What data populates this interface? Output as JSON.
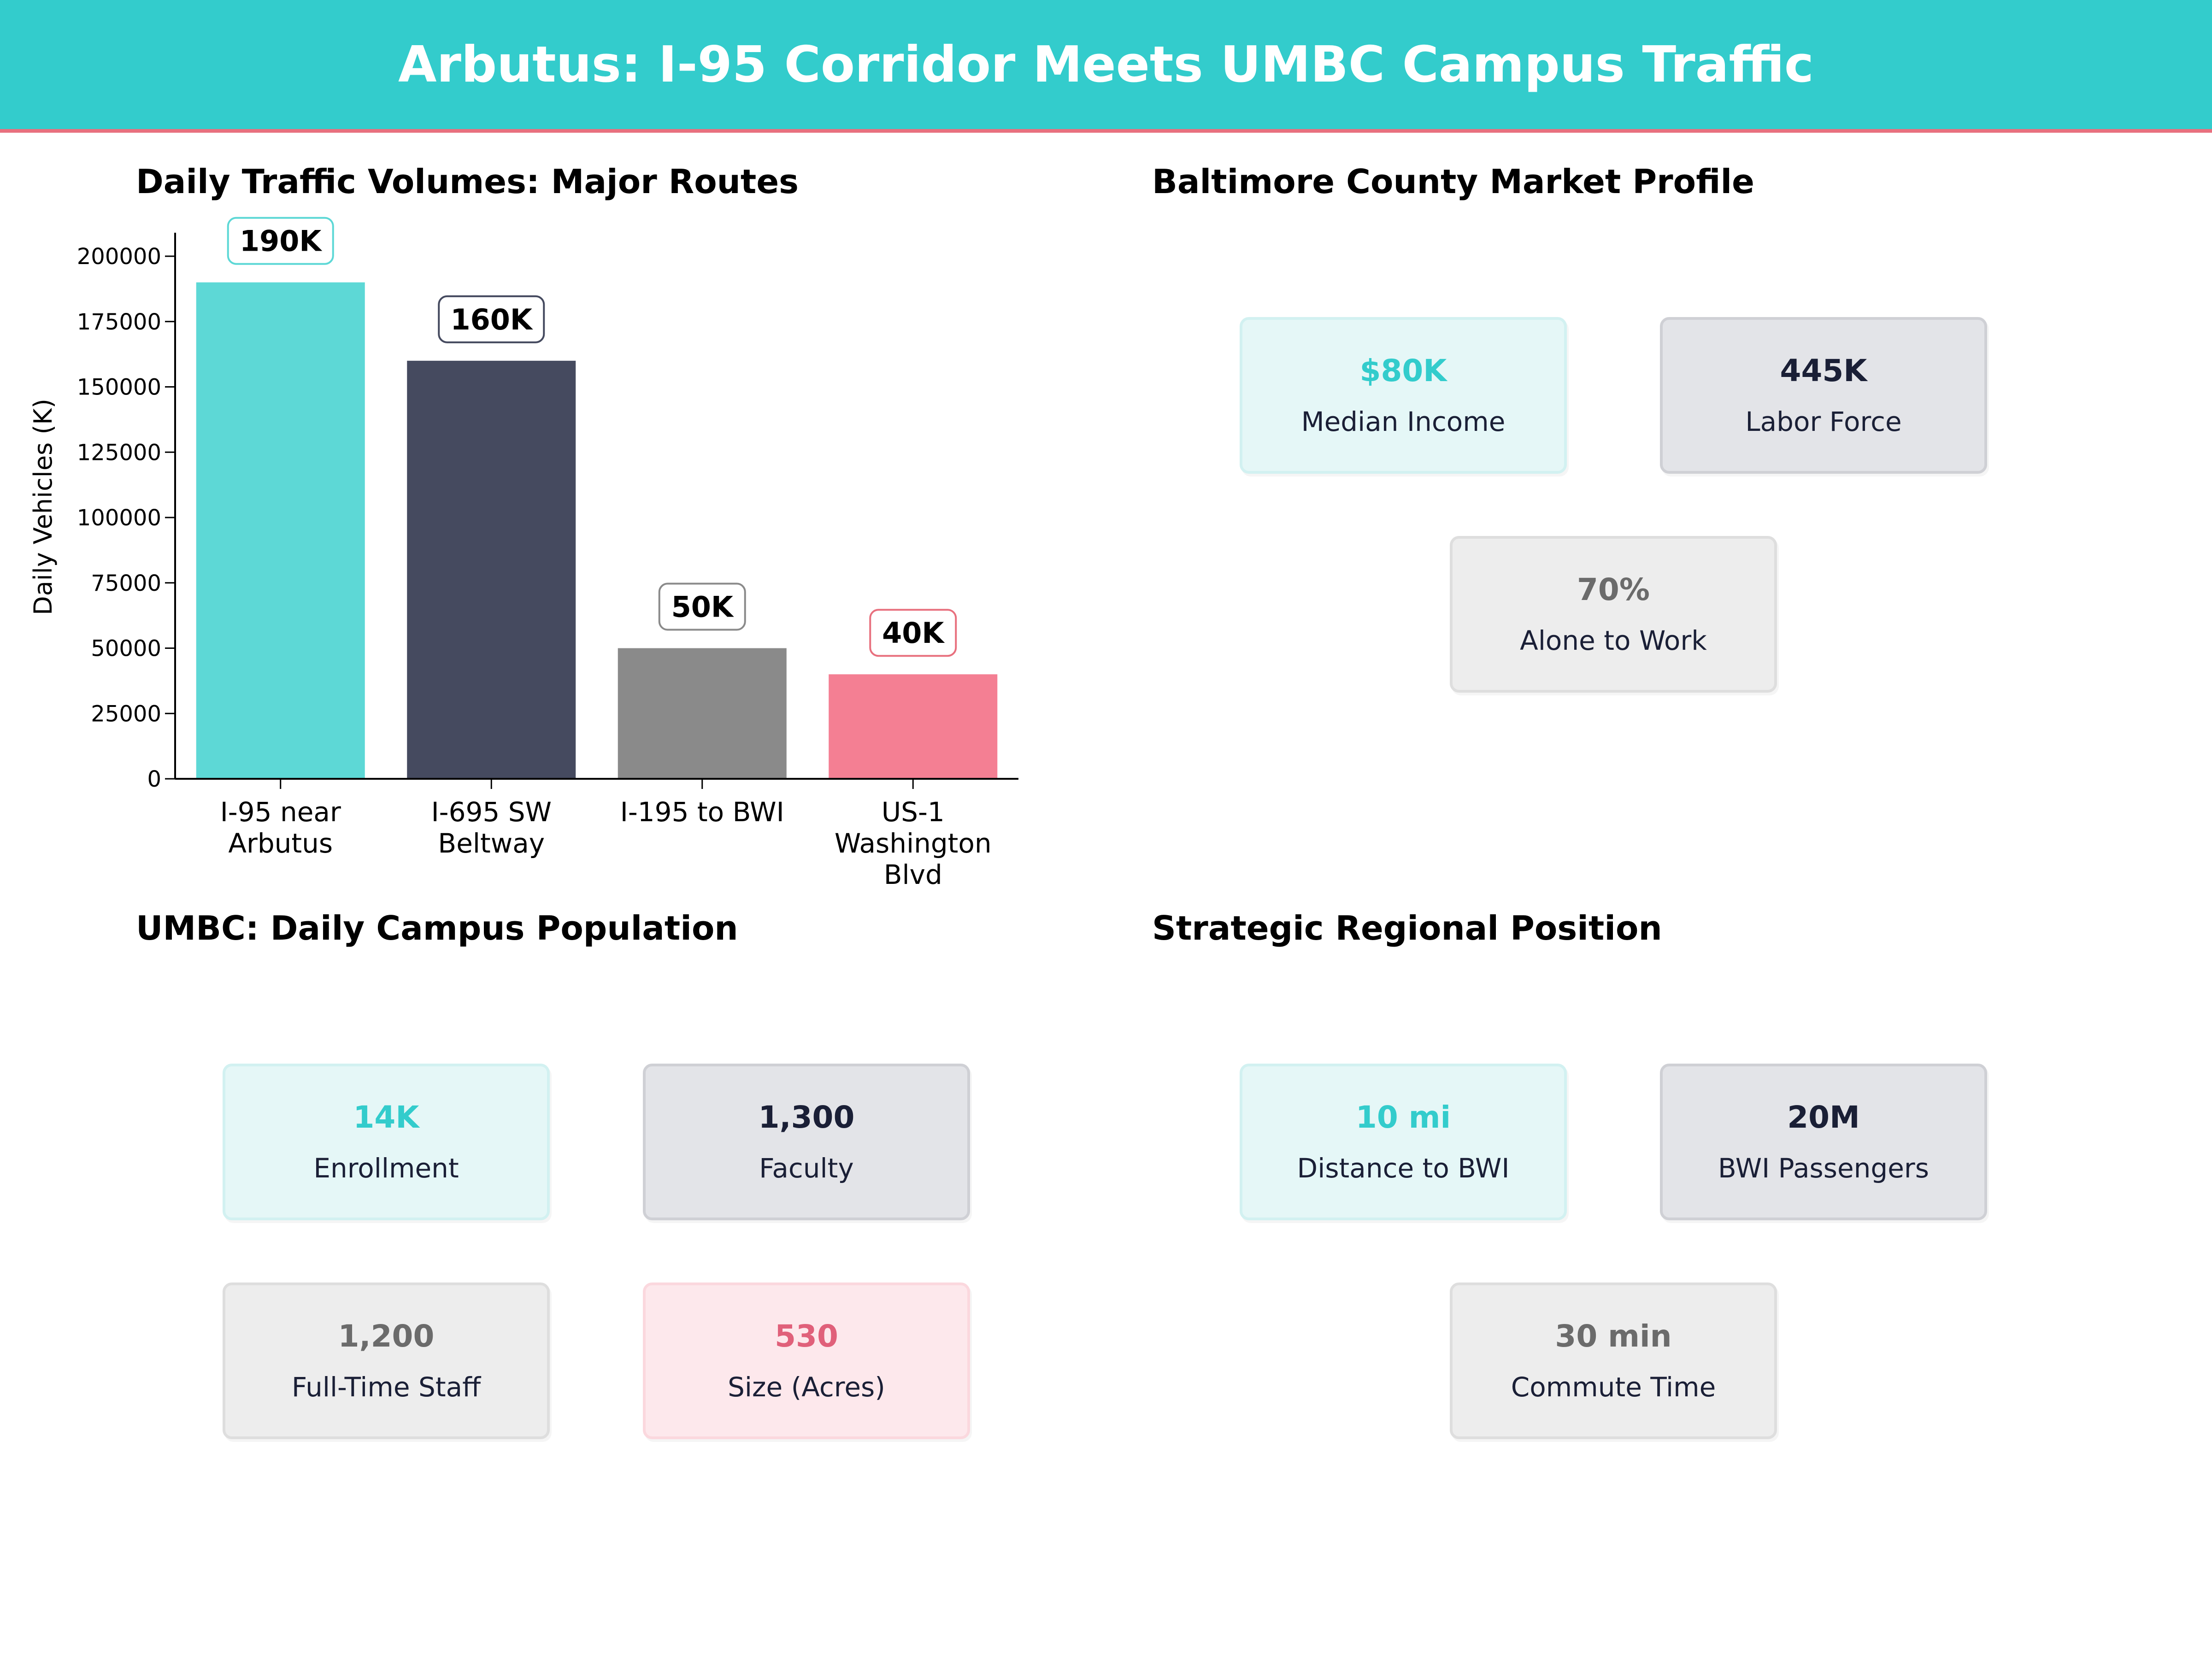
{
  "title": "Arbutus: I-95 Corridor Meets UMBC Campus Traffic",
  "colors": {
    "banner": "#33cccc",
    "banner_rule": "#e8707e",
    "teal": "#33cccc",
    "navy": "#1a1f36",
    "gray": "#6b6b6b",
    "pink": "#e0607a"
  },
  "chart_data": {
    "type": "bar",
    "title": "Daily Traffic Volumes: Major Routes",
    "xlabel": "",
    "ylabel": "Daily Vehicles (K)",
    "categories": [
      "I-95 near\nArbutus",
      "I-695 SW\nBeltway",
      "I-195 to BWI",
      "US-1\nWashington\nBlvd"
    ],
    "values": [
      190000,
      160000,
      50000,
      40000
    ],
    "data_labels": [
      "190K",
      "160K",
      "50K",
      "40K"
    ],
    "bar_colors": [
      "#5dd8d6",
      "#454a5f",
      "#8a8a8a",
      "#f47f93"
    ],
    "label_border_colors": [
      "#5dd8d6",
      "#454a5f",
      "#8a8a8a",
      "#e8707e"
    ],
    "yticks": [
      0,
      25000,
      50000,
      75000,
      100000,
      125000,
      150000,
      175000,
      200000
    ],
    "ylim": [
      0,
      209000
    ],
    "grid": false,
    "legend": "none"
  },
  "market": {
    "title": "Baltimore County Market Profile",
    "cards": [
      {
        "value": "$80K",
        "label": "Median Income",
        "style": "teal"
      },
      {
        "value": "445K",
        "label": "Labor Force",
        "style": "navy"
      },
      {
        "value": "70%",
        "label": "Alone to Work",
        "style": "gray"
      }
    ]
  },
  "umbc": {
    "title": "UMBC: Daily Campus Population",
    "cards": [
      {
        "value": "14K",
        "label": "Enrollment",
        "style": "teal"
      },
      {
        "value": "1,300",
        "label": "Faculty",
        "style": "navy"
      },
      {
        "value": "1,200",
        "label": "Full-Time Staff",
        "style": "gray"
      },
      {
        "value": "530",
        "label": "Size (Acres)",
        "style": "pink"
      }
    ]
  },
  "regional": {
    "title": "Strategic Regional Position",
    "cards": [
      {
        "value": "10 mi",
        "label": "Distance to BWI",
        "style": "teal"
      },
      {
        "value": "20M",
        "label": "BWI  Passengers",
        "style": "navy"
      },
      {
        "value": "30 min",
        "label": "Commute Time",
        "style": "gray"
      }
    ]
  }
}
